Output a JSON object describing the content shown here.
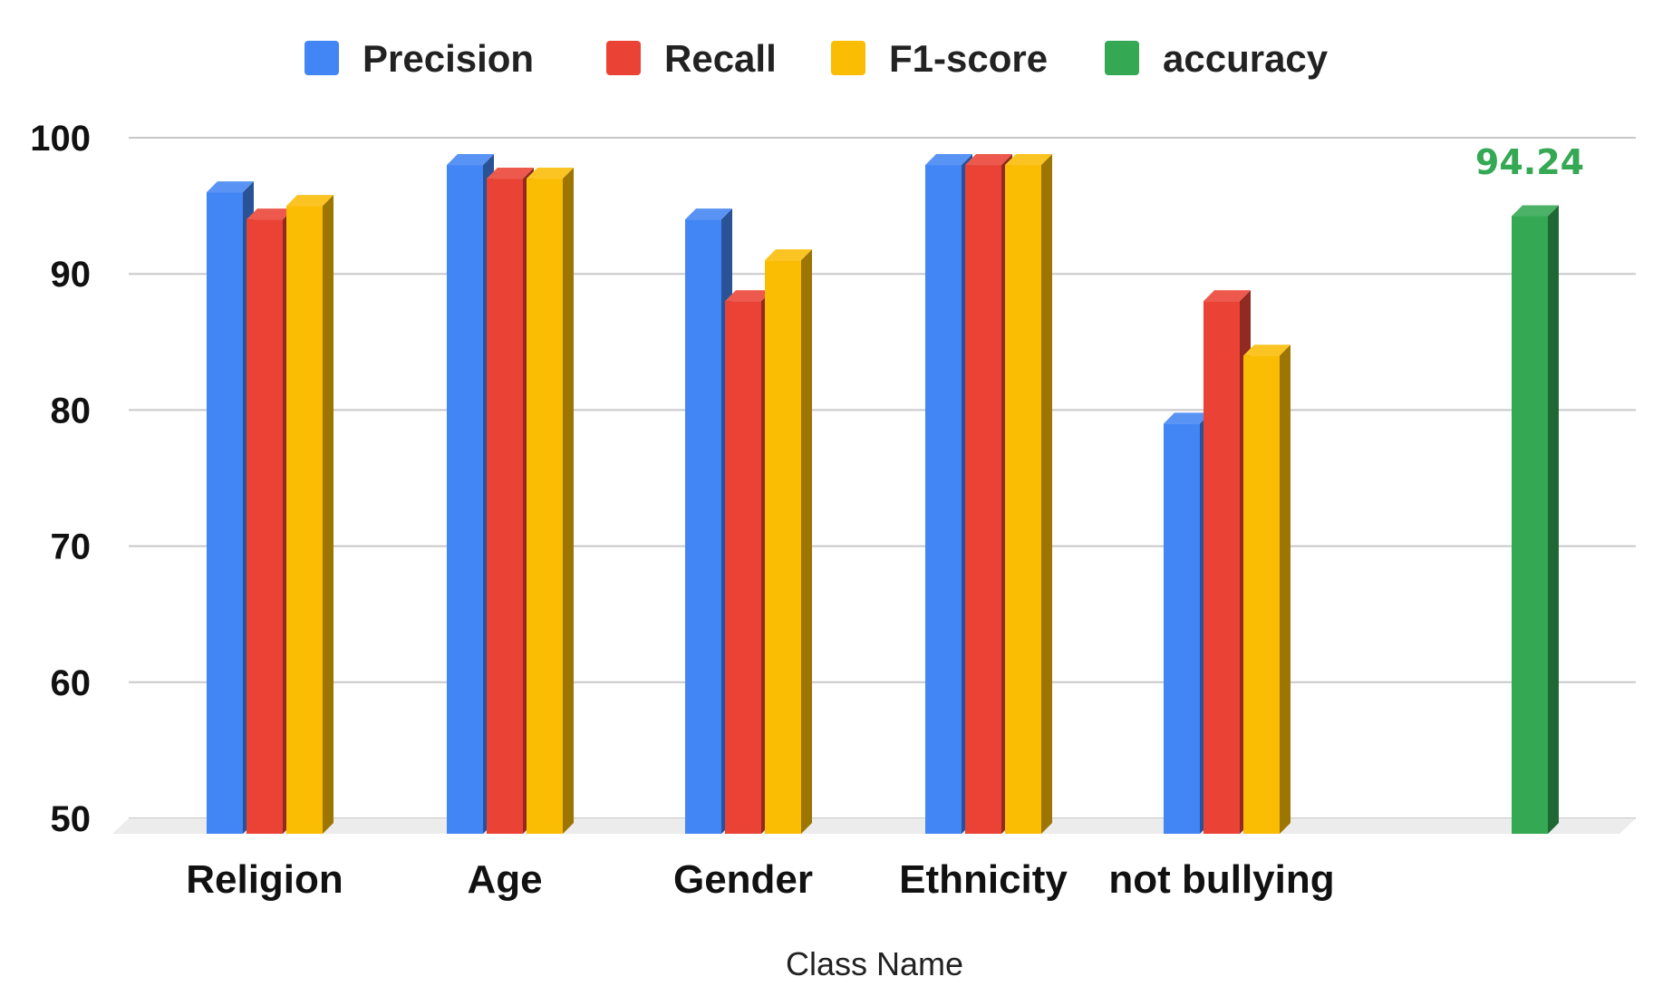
{
  "chart_data": {
    "type": "bar",
    "xlabel": "Class Name",
    "ylabel": "",
    "ylim": [
      50,
      100
    ],
    "yticks": [
      50,
      60,
      70,
      80,
      90,
      100
    ],
    "grid": true,
    "legend_position": "top",
    "categories": [
      "Religion",
      "Age",
      "Gender",
      "Ethnicity",
      "not bullying",
      ""
    ],
    "series": [
      {
        "name": "Precision",
        "color": "#4285f4",
        "values": [
          96,
          98,
          94,
          98,
          79,
          null
        ]
      },
      {
        "name": "Recall",
        "color": "#ea4335",
        "values": [
          94,
          97,
          88,
          98,
          88,
          null
        ]
      },
      {
        "name": "F1-score",
        "color": "#fbbc04",
        "values": [
          95,
          97,
          91,
          98,
          84,
          null
        ]
      },
      {
        "name": "accuracy",
        "color": "#34a853",
        "values": [
          null,
          null,
          null,
          null,
          null,
          94.24
        ]
      }
    ],
    "data_labels": [
      {
        "series": "accuracy",
        "category_index": 5,
        "text": "94.24"
      }
    ]
  }
}
